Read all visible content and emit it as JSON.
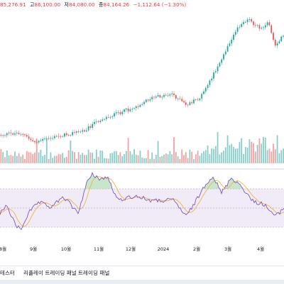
{
  "ohlc_bar": {
    "prev_close_fragment": "85,276.91",
    "high_label": "고",
    "high_value": "86,100.00",
    "low_label": "저",
    "low_value": "84,080.00",
    "close_label": "종",
    "close_value": "84,164.26",
    "change": "−1,112.64 (−1.30%)"
  },
  "time_axis": [
    "8월",
    "9월",
    "10월",
    "11월",
    "12월",
    "2024",
    "2월",
    "3월",
    "4월"
  ],
  "tabs": [
    "테스터",
    "리플레이 트레이딩 패널",
    "트레이딩 패널"
  ],
  "colors": {
    "up": "#26a69a",
    "down": "#ef5350",
    "rsi_line": "#7e57c2",
    "rsi_ma": "#f0b43a",
    "rsi_band": "#ede7f6"
  },
  "chart_data": {
    "type": "candlestick",
    "price_approx_monthly": [
      {
        "month": "8월",
        "price": 29000
      },
      {
        "month": "9월",
        "price": 26500
      },
      {
        "month": "10월",
        "price": 34500
      },
      {
        "month": "11월",
        "price": 37500
      },
      {
        "month": "12월",
        "price": 43000
      },
      {
        "month": "2024",
        "price": 43000
      },
      {
        "month": "2월",
        "price": 52000
      },
      {
        "month": "3월",
        "price": 70000
      },
      {
        "month": "4월",
        "price": 66000
      }
    ],
    "indicator": {
      "name": "RSI",
      "upper_band": 70,
      "lower_band": 30,
      "line_color": "#7e57c2",
      "ma_color": "#f0b43a"
    }
  }
}
